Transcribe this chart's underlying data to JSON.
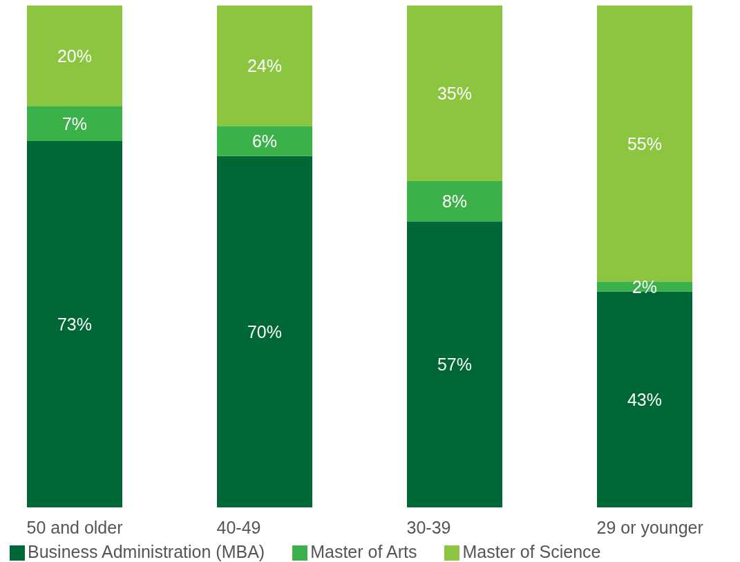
{
  "chart_data": {
    "type": "bar",
    "stacked": true,
    "categories": [
      "50 and older",
      "40-49",
      "30-39",
      "29 or younger"
    ],
    "series": [
      {
        "name": "Business Administration (MBA)",
        "color": "#006837",
        "values": [
          73,
          70,
          57,
          43
        ],
        "value_labels": [
          "73%",
          "70%",
          "57%",
          "43%"
        ]
      },
      {
        "name": "Master of Arts",
        "color": "#3bb14a",
        "values": [
          7,
          6,
          8,
          2
        ],
        "value_labels": [
          "7%",
          "6%",
          "8%",
          "2%"
        ]
      },
      {
        "name": "Master of Science",
        "color": "#8cc641",
        "values": [
          20,
          24,
          35,
          55
        ],
        "value_labels": [
          "20%",
          "24%",
          "35%",
          "55%"
        ]
      }
    ],
    "legend": "bottom",
    "grid": false
  }
}
